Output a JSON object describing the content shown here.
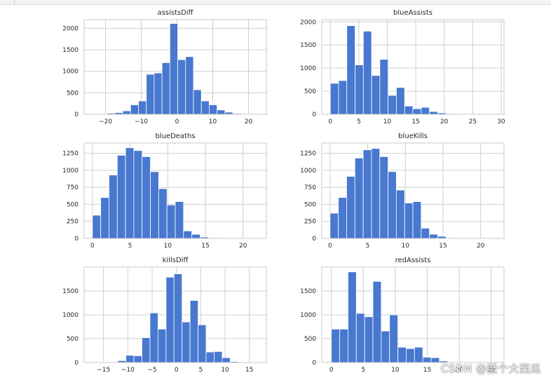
{
  "chart_data": [
    {
      "type": "bar",
      "title": "assistsDiff",
      "xlim": [
        -26,
        25
      ],
      "ylim": [
        0,
        2200
      ],
      "xticks": [
        -20,
        -10,
        0,
        10,
        20
      ],
      "yticks": [
        0,
        500,
        1000,
        1500,
        2000
      ],
      "bin_edges": [
        -24.0,
        -21.8,
        -19.6,
        -17.4,
        -15.2,
        -13.0,
        -10.8,
        -8.6,
        -6.4,
        -4.2,
        -2.0,
        0.2,
        2.4,
        4.6,
        6.8,
        9.0,
        11.2,
        13.4,
        15.6,
        17.8,
        20.0
      ],
      "values": [
        3,
        10,
        25,
        40,
        80,
        220,
        310,
        930,
        960,
        1200,
        2110,
        1270,
        1340,
        570,
        310,
        220,
        100,
        50,
        20,
        5
      ]
    },
    {
      "type": "bar",
      "title": "blueAssists",
      "xlim": [
        -1.5,
        30.5
      ],
      "ylim": [
        0,
        2050
      ],
      "xticks": [
        0,
        5,
        10,
        15,
        20,
        25,
        30
      ],
      "yticks": [
        0,
        500,
        1000,
        1500,
        2000
      ],
      "bin_edges": [
        0.0,
        1.45,
        2.9,
        4.35,
        5.8,
        7.25,
        8.7,
        10.15,
        11.6,
        13.05,
        14.5,
        15.95,
        17.4,
        18.85,
        20.3,
        21.75,
        23.2,
        24.65,
        26.1,
        27.55,
        29.0
      ],
      "values": [
        670,
        730,
        1920,
        1070,
        1800,
        840,
        1190,
        410,
        580,
        180,
        120,
        150,
        60,
        30,
        15,
        10,
        5,
        2,
        1,
        1
      ]
    },
    {
      "type": "bar",
      "title": "blueDeaths",
      "xlim": [
        -1.1,
        23.1
      ],
      "ylim": [
        0,
        1400
      ],
      "xticks": [
        0,
        5,
        10,
        15,
        20
      ],
      "yticks": [
        0,
        250,
        500,
        750,
        1000,
        1250
      ],
      "bin_edges": [
        0.0,
        1.1,
        2.2,
        3.3,
        4.4,
        5.5,
        6.6,
        7.7,
        8.8,
        9.9,
        11.0,
        12.1,
        13.2,
        14.3,
        15.4,
        16.5,
        17.6,
        18.7,
        19.8,
        20.9,
        22.0
      ],
      "values": [
        340,
        600,
        930,
        1220,
        1330,
        1290,
        1200,
        980,
        730,
        490,
        540,
        110,
        60,
        20,
        10,
        5,
        3,
        2,
        1,
        1
      ]
    },
    {
      "type": "bar",
      "title": "blueKills",
      "xlim": [
        -1.1,
        23.1
      ],
      "ylim": [
        0,
        1400
      ],
      "xticks": [
        0,
        5,
        10,
        15,
        20
      ],
      "yticks": [
        0,
        250,
        500,
        750,
        1000,
        1250
      ],
      "bin_edges": [
        0.0,
        1.1,
        2.2,
        3.3,
        4.4,
        5.5,
        6.6,
        7.7,
        8.8,
        9.9,
        11.0,
        12.1,
        13.2,
        14.3,
        15.4,
        16.5,
        17.6,
        18.7,
        19.8,
        20.9,
        22.0
      ],
      "values": [
        370,
        600,
        910,
        1180,
        1300,
        1320,
        1200,
        980,
        710,
        520,
        540,
        150,
        60,
        30,
        10,
        5,
        3,
        2,
        1,
        1
      ]
    },
    {
      "type": "bar",
      "title": "killsDiff",
      "xlim": [
        -19,
        18.5
      ],
      "ylim": [
        0,
        2000
      ],
      "xticks": [
        -15,
        -10,
        -5,
        0,
        5,
        10,
        15
      ],
      "yticks": [
        0,
        500,
        1000,
        1500
      ],
      "bin_edges": [
        -17.0,
        -15.35,
        -13.7,
        -12.05,
        -10.4,
        -8.75,
        -7.1,
        -5.45,
        -3.8,
        -2.15,
        -0.5,
        1.15,
        2.8,
        4.45,
        6.1,
        7.75,
        9.4,
        11.05,
        12.7,
        14.35,
        16.0
      ],
      "values": [
        2,
        5,
        10,
        40,
        150,
        140,
        520,
        1040,
        700,
        1790,
        1860,
        850,
        1300,
        790,
        220,
        230,
        100,
        20,
        5,
        2
      ]
    },
    {
      "type": "bar",
      "title": "redAssists",
      "xlim": [
        -1.5,
        27
      ],
      "ylim": [
        0,
        2000
      ],
      "xticks": [
        0,
        5,
        10,
        15,
        20,
        25
      ],
      "yticks": [
        0,
        500,
        1000,
        1500
      ],
      "bin_edges": [
        0.0,
        1.3,
        2.6,
        3.9,
        5.2,
        6.5,
        7.8,
        9.1,
        10.4,
        11.7,
        13.0,
        14.3,
        15.6,
        16.9,
        18.2,
        19.5,
        20.8,
        22.1,
        23.4,
        24.7,
        26.0
      ],
      "values": [
        700,
        700,
        1900,
        1030,
        960,
        1700,
        660,
        1000,
        320,
        290,
        320,
        110,
        100,
        30,
        10,
        5,
        3,
        2,
        1,
        1
      ]
    }
  ],
  "watermark": "CSDN @敲个大西瓜",
  "colors": {
    "bar": "#4878d0",
    "grid": "#cfcfcf",
    "frame": "#c8c8c8"
  }
}
